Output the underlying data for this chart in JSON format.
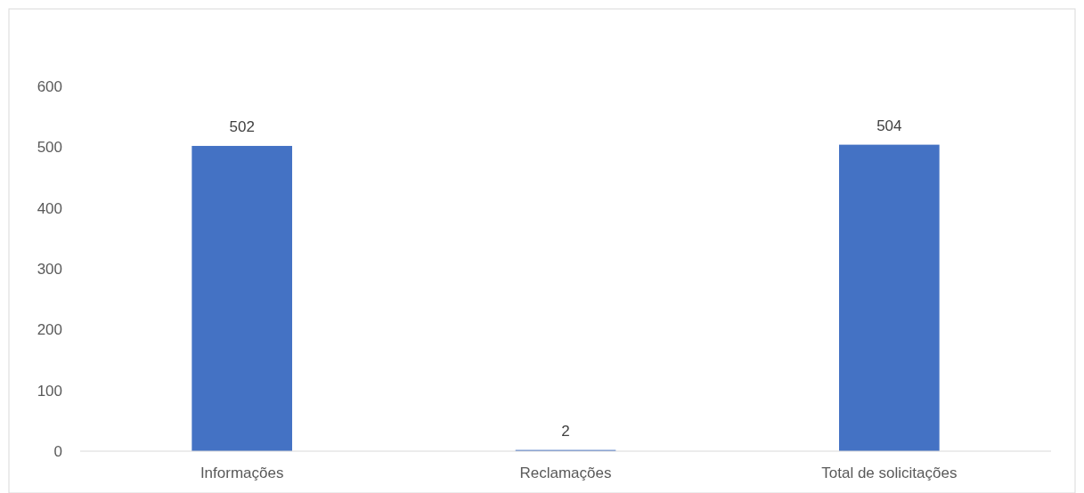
{
  "chart_data": {
    "type": "bar",
    "categories": [
      "Informações",
      "Reclamações",
      "Total de solicitações"
    ],
    "values": [
      502,
      2,
      504
    ],
    "color": "#4472c4",
    "ylim": [
      0,
      600
    ],
    "yticks": [
      0,
      100,
      200,
      300,
      400,
      500,
      600
    ],
    "data_labels": true
  }
}
